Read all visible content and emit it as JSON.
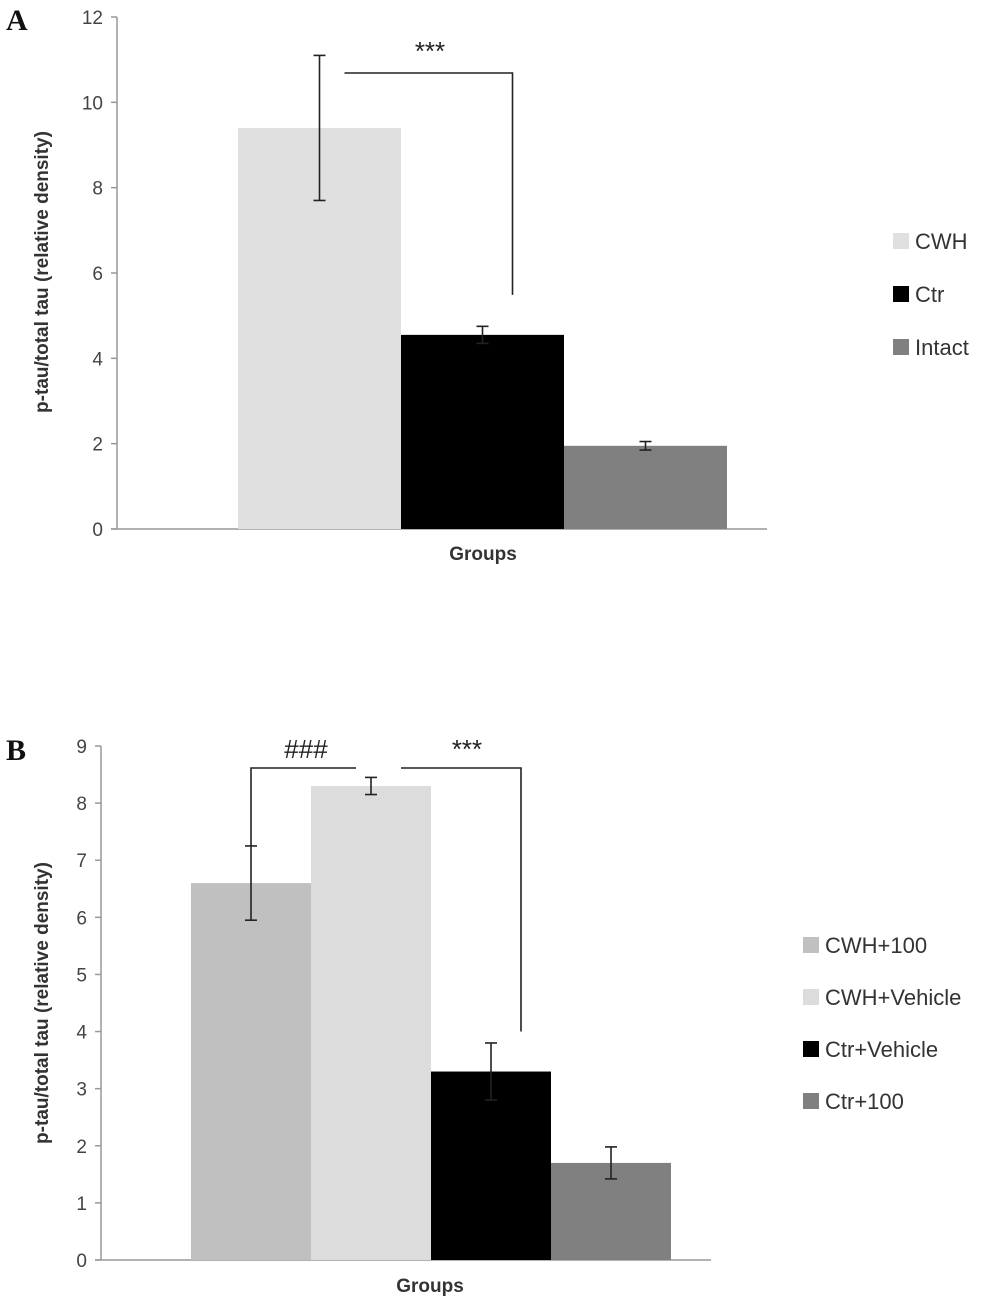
{
  "chart_data": [
    {
      "panel": "A",
      "type": "bar",
      "xlabel": "Groups",
      "ylabel": "p-tau/total tau (relative density)",
      "ylim": [
        0,
        12
      ],
      "yticks": [
        0,
        2,
        4,
        6,
        8,
        10,
        12
      ],
      "grid": false,
      "legend_position": "right",
      "series": [
        {
          "name": "CWH",
          "value": 9.4,
          "error": 1.7,
          "color": "#e0e0e0"
        },
        {
          "name": "Ctr",
          "value": 4.55,
          "error": 0.2,
          "color": "#000000"
        },
        {
          "name": "Intact",
          "value": 1.95,
          "error": 0.1,
          "color": "#808080"
        }
      ],
      "annotations": [
        {
          "label": "***",
          "from": "CWH",
          "to": "Ctr"
        }
      ]
    },
    {
      "panel": "B",
      "type": "bar",
      "xlabel": "Groups",
      "ylabel": "p-tau/total tau (relative density)",
      "ylim": [
        0,
        9
      ],
      "yticks": [
        0,
        1,
        2,
        3,
        4,
        5,
        6,
        7,
        8,
        9
      ],
      "grid": false,
      "legend_position": "right",
      "series": [
        {
          "name": "CWH+100",
          "value": 6.6,
          "error": 0.65,
          "color": "#c0c0c0"
        },
        {
          "name": "CWH+Vehicle",
          "value": 8.3,
          "error": 0.15,
          "color": "#dcdcdc"
        },
        {
          "name": "Ctr+Vehicle",
          "value": 3.3,
          "error": 0.5,
          "color": "#000000"
        },
        {
          "name": "Ctr+100",
          "value": 1.7,
          "error": 0.28,
          "color": "#808080"
        }
      ],
      "annotations": [
        {
          "label": "###",
          "from": "CWH+100",
          "to": "CWH+Vehicle"
        },
        {
          "label": "***",
          "from": "CWH+Vehicle",
          "to": "Ctr+Vehicle"
        }
      ]
    }
  ]
}
